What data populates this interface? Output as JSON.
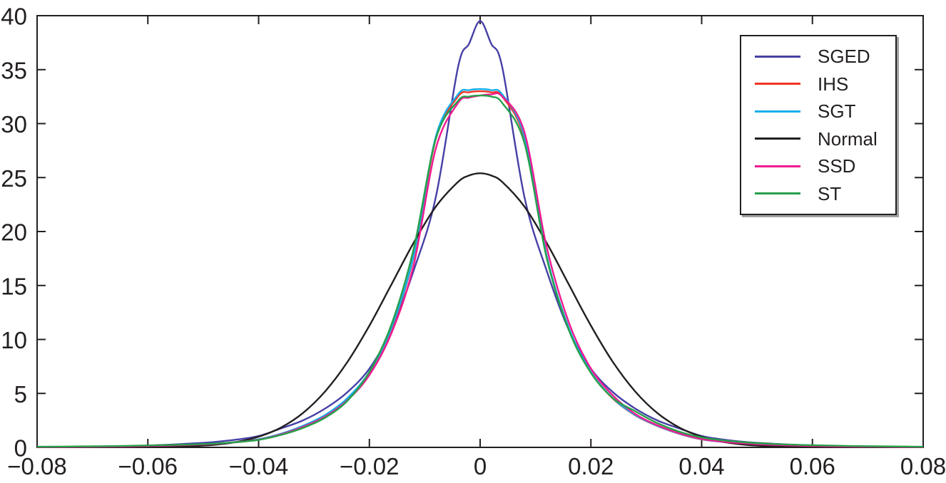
{
  "chart_data": {
    "type": "line",
    "title": "",
    "xlabel": "",
    "ylabel": "",
    "xlim": [
      -0.08,
      0.08
    ],
    "ylim": [
      0,
      40
    ],
    "grid": false,
    "background": "#ffffff",
    "axis_color": "#231f20",
    "legend_position": "top-right",
    "x_ticks": [
      {
        "value": -0.08,
        "label": "−0.08"
      },
      {
        "value": -0.06,
        "label": "−0.06"
      },
      {
        "value": -0.04,
        "label": "−0.04"
      },
      {
        "value": -0.02,
        "label": "−0.02"
      },
      {
        "value": 0,
        "label": "0"
      },
      {
        "value": 0.02,
        "label": "0.02"
      },
      {
        "value": 0.04,
        "label": "0.04"
      },
      {
        "value": 0.06,
        "label": "0.06"
      },
      {
        "value": 0.08,
        "label": "0.08"
      }
    ],
    "y_ticks": [
      {
        "value": 0,
        "label": "0"
      },
      {
        "value": 5,
        "label": "5"
      },
      {
        "value": 10,
        "label": "10"
      },
      {
        "value": 15,
        "label": "15"
      },
      {
        "value": 20,
        "label": "20"
      },
      {
        "value": 25,
        "label": "25"
      },
      {
        "value": 30,
        "label": "30"
      },
      {
        "value": 35,
        "label": "35"
      },
      {
        "value": 40,
        "label": "40"
      }
    ],
    "x": [
      -0.08,
      -0.076,
      -0.072,
      -0.068,
      -0.064,
      -0.06,
      -0.056,
      -0.052,
      -0.048,
      -0.044,
      -0.04,
      -0.036,
      -0.032,
      -0.028,
      -0.024,
      -0.02,
      -0.016,
      -0.012,
      -0.008,
      -0.004,
      -0.002,
      0,
      0.002,
      0.004,
      0.008,
      0.012,
      0.016,
      0.02,
      0.024,
      0.028,
      0.032,
      0.036,
      0.04,
      0.044,
      0.048,
      0.052,
      0.056,
      0.06,
      0.064,
      0.068,
      0.072,
      0.076,
      0.08
    ],
    "series": [
      {
        "name": "SGED",
        "color": "#4540a5",
        "peak": 39.5,
        "values": [
          0.02,
          0.03,
          0.05,
          0.07,
          0.11,
          0.17,
          0.25,
          0.36,
          0.5,
          0.72,
          1.05,
          1.75,
          2.5,
          3.6,
          5.1,
          7.3,
          10.9,
          16.4,
          23.2,
          35.2,
          37.4,
          39.5,
          37.4,
          35.2,
          23.2,
          16.4,
          10.9,
          7.3,
          5.1,
          3.6,
          2.5,
          1.75,
          1.05,
          0.72,
          0.5,
          0.36,
          0.25,
          0.17,
          0.11,
          0.07,
          0.05,
          0.03,
          0.02
        ]
      },
      {
        "name": "IHS",
        "color": "#f03524",
        "peak": 33.0,
        "values": [
          0.04,
          0.05,
          0.06,
          0.08,
          0.1,
          0.13,
          0.18,
          0.25,
          0.35,
          0.5,
          0.74,
          1.25,
          1.98,
          2.97,
          4.5,
          6.95,
          11.0,
          17.7,
          28.6,
          32.5,
          32.9,
          33.0,
          32.9,
          32.5,
          28.6,
          17.7,
          11.0,
          6.95,
          4.5,
          2.97,
          1.98,
          1.25,
          0.74,
          0.5,
          0.35,
          0.25,
          0.18,
          0.13,
          0.1,
          0.08,
          0.06,
          0.05,
          0.04
        ]
      },
      {
        "name": "SGT",
        "color": "#17aeea",
        "peak": 33.2,
        "values": [
          0.04,
          0.05,
          0.06,
          0.08,
          0.1,
          0.13,
          0.18,
          0.25,
          0.35,
          0.5,
          0.75,
          1.26,
          2.0,
          3.0,
          4.55,
          7.0,
          11.1,
          17.8,
          28.8,
          32.7,
          33.1,
          33.2,
          33.1,
          32.7,
          28.8,
          17.8,
          11.1,
          7.0,
          4.55,
          3.0,
          2.0,
          1.26,
          0.75,
          0.5,
          0.35,
          0.25,
          0.18,
          0.13,
          0.1,
          0.08,
          0.06,
          0.05,
          0.04
        ]
      },
      {
        "name": "Normal",
        "color": "#231f20",
        "peak": 25.4,
        "values": [
          0.0,
          0.0,
          0.0,
          0.0,
          0.01,
          0.02,
          0.04,
          0.11,
          0.24,
          0.5,
          0.99,
          1.83,
          3.18,
          5.18,
          7.89,
          11.28,
          15.11,
          18.97,
          22.31,
          24.59,
          25.19,
          25.4,
          25.19,
          24.59,
          22.31,
          18.97,
          15.11,
          11.28,
          7.89,
          5.18,
          3.18,
          1.83,
          0.99,
          0.5,
          0.24,
          0.11,
          0.04,
          0.02,
          0.01,
          0.0,
          0.0,
          0.0,
          0.0
        ]
      },
      {
        "name": "SSD",
        "color": "#ef1a90",
        "peak": 32.7,
        "values": [
          0.03,
          0.04,
          0.05,
          0.07,
          0.09,
          0.13,
          0.17,
          0.24,
          0.33,
          0.48,
          0.72,
          1.2,
          1.9,
          2.85,
          4.35,
          6.7,
          10.6,
          16.9,
          27.7,
          31.9,
          32.4,
          32.6,
          32.7,
          32.5,
          29.2,
          18.6,
          11.6,
          7.3,
          4.8,
          3.1,
          2.05,
          1.3,
          0.78,
          0.52,
          0.36,
          0.25,
          0.18,
          0.13,
          0.1,
          0.07,
          0.06,
          0.04,
          0.03
        ]
      },
      {
        "name": "ST",
        "color": "#26a04a",
        "peak": 32.6,
        "values": [
          0.06,
          0.07,
          0.09,
          0.11,
          0.14,
          0.18,
          0.22,
          0.27,
          0.35,
          0.48,
          0.7,
          1.15,
          1.8,
          2.75,
          4.3,
          7.0,
          11.4,
          18.4,
          28.6,
          32.1,
          32.5,
          32.6,
          32.5,
          31.9,
          28.2,
          17.6,
          10.9,
          6.9,
          4.55,
          3.35,
          2.25,
          1.45,
          0.92,
          0.64,
          0.46,
          0.34,
          0.26,
          0.2,
          0.16,
          0.12,
          0.1,
          0.08,
          0.06
        ]
      }
    ]
  }
}
